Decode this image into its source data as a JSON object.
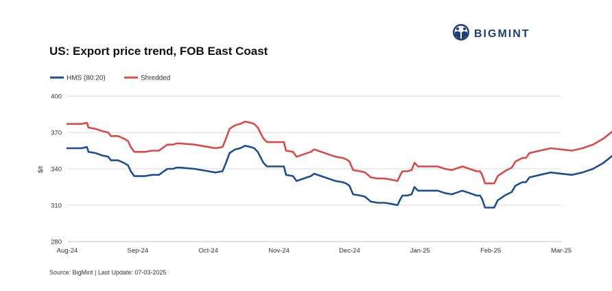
{
  "brand": {
    "name": "BIGMINT",
    "logo_icon": "bigmint-globe-logo-icon"
  },
  "chart_data": {
    "type": "line",
    "title": "US: Export price trend, FOB East Coast",
    "ylabel": "$/t",
    "xlabel": "",
    "ylim": [
      280,
      400
    ],
    "yticks": [
      280,
      310,
      340,
      370,
      400
    ],
    "xticks": [
      "Aug-24",
      "Sep-24",
      "Oct-24",
      "Nov-24",
      "Dec-24",
      "Jan-25",
      "Feb-25",
      "Mar-25"
    ],
    "grid": "horizontal",
    "legend_position": "top-left",
    "series": [
      {
        "name": "HMS (80:20)",
        "color": "#1f4e8c",
        "points": [
          [
            0,
            357
          ],
          [
            0.1,
            357
          ],
          [
            0.2,
            357
          ],
          [
            0.28,
            358
          ],
          [
            0.3,
            354
          ],
          [
            0.4,
            353
          ],
          [
            0.5,
            351
          ],
          [
            0.58,
            350
          ],
          [
            0.62,
            347
          ],
          [
            0.72,
            347
          ],
          [
            0.8,
            345
          ],
          [
            0.86,
            343
          ],
          [
            0.9,
            338
          ],
          [
            0.95,
            334
          ],
          [
            1.0,
            334
          ],
          [
            1.1,
            334
          ],
          [
            1.2,
            335
          ],
          [
            1.3,
            335
          ],
          [
            1.37,
            338
          ],
          [
            1.42,
            340
          ],
          [
            1.5,
            340
          ],
          [
            1.55,
            341
          ],
          [
            1.6,
            341
          ],
          [
            1.8,
            340
          ],
          [
            2.0,
            338
          ],
          [
            2.1,
            337
          ],
          [
            2.2,
            338
          ],
          [
            2.25,
            345
          ],
          [
            2.3,
            353
          ],
          [
            2.38,
            356
          ],
          [
            2.45,
            357
          ],
          [
            2.52,
            359
          ],
          [
            2.6,
            358
          ],
          [
            2.65,
            357
          ],
          [
            2.7,
            354
          ],
          [
            2.78,
            345
          ],
          [
            2.83,
            342
          ],
          [
            3.0,
            342
          ],
          [
            3.07,
            342
          ],
          [
            3.1,
            335
          ],
          [
            3.2,
            334
          ],
          [
            3.25,
            330
          ],
          [
            3.35,
            332
          ],
          [
            3.45,
            334
          ],
          [
            3.5,
            336
          ],
          [
            3.6,
            334
          ],
          [
            3.7,
            332
          ],
          [
            3.8,
            330
          ],
          [
            3.9,
            329
          ],
          [
            3.95,
            328
          ],
          [
            4.0,
            326
          ],
          [
            4.05,
            319
          ],
          [
            4.15,
            318
          ],
          [
            4.22,
            317
          ],
          [
            4.3,
            313
          ],
          [
            4.4,
            312
          ],
          [
            4.5,
            312
          ],
          [
            4.6,
            311
          ],
          [
            4.68,
            310
          ],
          [
            4.72,
            315
          ],
          [
            4.75,
            318
          ],
          [
            4.82,
            318
          ],
          [
            4.88,
            319
          ],
          [
            4.92,
            325
          ],
          [
            4.97,
            322
          ],
          [
            5.1,
            322
          ],
          [
            5.25,
            322
          ],
          [
            5.35,
            320
          ],
          [
            5.45,
            319
          ],
          [
            5.5,
            320
          ],
          [
            5.6,
            322
          ],
          [
            5.7,
            320
          ],
          [
            5.8,
            318
          ],
          [
            5.85,
            318
          ],
          [
            5.88,
            315
          ],
          [
            5.92,
            308
          ],
          [
            6.05,
            308
          ],
          [
            6.1,
            314
          ],
          [
            6.2,
            318
          ],
          [
            6.3,
            321
          ],
          [
            6.35,
            326
          ],
          [
            6.45,
            329
          ],
          [
            6.5,
            329
          ],
          [
            6.55,
            333
          ],
          [
            6.7,
            335
          ],
          [
            6.85,
            337
          ],
          [
            7.0,
            336
          ],
          [
            7.15,
            335
          ],
          [
            7.3,
            337
          ],
          [
            7.45,
            340
          ],
          [
            7.6,
            345
          ],
          [
            7.75,
            352
          ]
        ]
      },
      {
        "name": "Shredded",
        "color": "#d94a4a",
        "points": [
          [
            0,
            377
          ],
          [
            0.1,
            377
          ],
          [
            0.2,
            377
          ],
          [
            0.28,
            378
          ],
          [
            0.3,
            374
          ],
          [
            0.4,
            373
          ],
          [
            0.5,
            371
          ],
          [
            0.58,
            370
          ],
          [
            0.62,
            367
          ],
          [
            0.72,
            367
          ],
          [
            0.8,
            365
          ],
          [
            0.86,
            363
          ],
          [
            0.9,
            358
          ],
          [
            0.95,
            354
          ],
          [
            1.0,
            354
          ],
          [
            1.1,
            354
          ],
          [
            1.2,
            355
          ],
          [
            1.3,
            355
          ],
          [
            1.37,
            358
          ],
          [
            1.42,
            360
          ],
          [
            1.5,
            360
          ],
          [
            1.55,
            361
          ],
          [
            1.6,
            361
          ],
          [
            1.8,
            360
          ],
          [
            2.0,
            358
          ],
          [
            2.1,
            357
          ],
          [
            2.2,
            358
          ],
          [
            2.25,
            365
          ],
          [
            2.3,
            373
          ],
          [
            2.38,
            376
          ],
          [
            2.45,
            377
          ],
          [
            2.52,
            379
          ],
          [
            2.6,
            378
          ],
          [
            2.65,
            377
          ],
          [
            2.7,
            374
          ],
          [
            2.78,
            365
          ],
          [
            2.83,
            362
          ],
          [
            3.0,
            362
          ],
          [
            3.07,
            362
          ],
          [
            3.1,
            355
          ],
          [
            3.2,
            354
          ],
          [
            3.25,
            350
          ],
          [
            3.35,
            352
          ],
          [
            3.45,
            354
          ],
          [
            3.5,
            356
          ],
          [
            3.6,
            354
          ],
          [
            3.7,
            352
          ],
          [
            3.8,
            350
          ],
          [
            3.9,
            349
          ],
          [
            3.95,
            348
          ],
          [
            4.0,
            346
          ],
          [
            4.05,
            339
          ],
          [
            4.15,
            338
          ],
          [
            4.22,
            337
          ],
          [
            4.3,
            333
          ],
          [
            4.4,
            332
          ],
          [
            4.5,
            332
          ],
          [
            4.6,
            331
          ],
          [
            4.68,
            330
          ],
          [
            4.72,
            335
          ],
          [
            4.75,
            338
          ],
          [
            4.82,
            338
          ],
          [
            4.88,
            339
          ],
          [
            4.92,
            345
          ],
          [
            4.97,
            342
          ],
          [
            5.1,
            342
          ],
          [
            5.25,
            342
          ],
          [
            5.35,
            340
          ],
          [
            5.45,
            339
          ],
          [
            5.5,
            340
          ],
          [
            5.6,
            342
          ],
          [
            5.7,
            340
          ],
          [
            5.8,
            338
          ],
          [
            5.85,
            338
          ],
          [
            5.88,
            335
          ],
          [
            5.92,
            328
          ],
          [
            6.05,
            328
          ],
          [
            6.1,
            334
          ],
          [
            6.2,
            338
          ],
          [
            6.3,
            341
          ],
          [
            6.35,
            346
          ],
          [
            6.45,
            349
          ],
          [
            6.5,
            349
          ],
          [
            6.55,
            353
          ],
          [
            6.7,
            355
          ],
          [
            6.85,
            357
          ],
          [
            7.0,
            356
          ],
          [
            7.15,
            355
          ],
          [
            7.3,
            357
          ],
          [
            7.45,
            360
          ],
          [
            7.6,
            365
          ],
          [
            7.75,
            372
          ]
        ]
      }
    ]
  },
  "footer": {
    "source": "Source: BigMint | Last Update: 07-03-2025"
  }
}
